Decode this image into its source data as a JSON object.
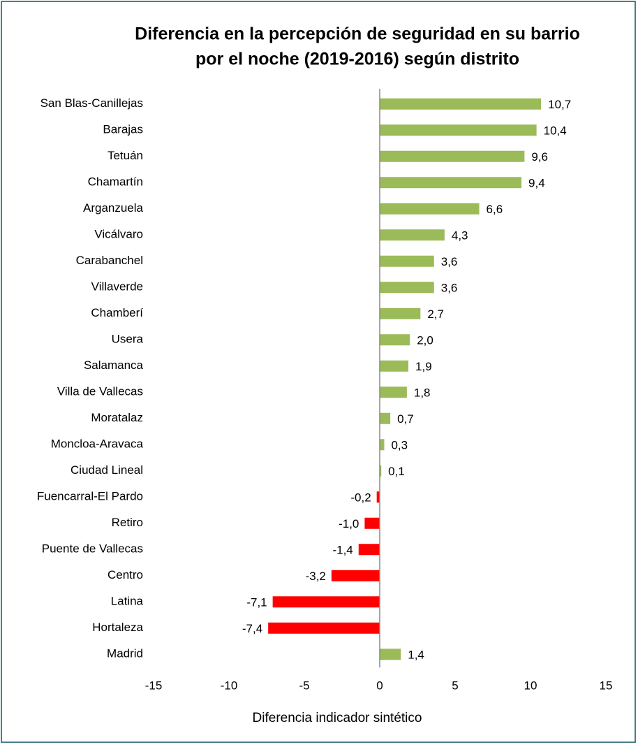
{
  "chart_data": {
    "type": "hbar",
    "title": [
      "Diferencia en la percepción de seguridad en su barrio",
      "por el noche (2019-2016) según distrito"
    ],
    "xlabel": "Diferencia indicador sintético",
    "categories": [
      "San Blas-Canillejas",
      "Barajas",
      "Tetuán",
      "Chamartín",
      "Arganzuela",
      "Vicálvaro",
      "Carabanchel",
      "Villaverde",
      "Chamberí",
      "Usera",
      "Salamanca",
      "Villa de Vallecas",
      "Moratalaz",
      "Moncloa-Aravaca",
      "Ciudad Lineal",
      "Fuencarral-El Pardo",
      "Retiro",
      "Puente de Vallecas",
      "Centro",
      "Latina",
      "Hortaleza",
      "Madrid"
    ],
    "values": [
      10.7,
      10.4,
      9.6,
      9.4,
      6.6,
      4.3,
      3.6,
      3.6,
      2.7,
      2.0,
      1.9,
      1.8,
      0.7,
      0.3,
      0.1,
      -0.2,
      -1.0,
      -1.4,
      -3.2,
      -7.1,
      -7.4,
      1.4
    ],
    "value_labels": [
      "10,7",
      "10,4",
      "9,6",
      "9,4",
      "6,6",
      "4,3",
      "3,6",
      "3,6",
      "2,7",
      "2,0",
      "1,9",
      "1,8",
      "0,7",
      "0,3",
      "0,1",
      "-0,2",
      "-1,0",
      "-1,4",
      "-3,2",
      "-7,1",
      "-7,4",
      "1,4"
    ],
    "colors": [
      "#9bbb59",
      "#9bbb59",
      "#9bbb59",
      "#9bbb59",
      "#9bbb59",
      "#9bbb59",
      "#9bbb59",
      "#9bbb59",
      "#9bbb59",
      "#9bbb59",
      "#9bbb59",
      "#9bbb59",
      "#9bbb59",
      "#9bbb59",
      "#9bbb59",
      "#ff0000",
      "#ff0000",
      "#ff0000",
      "#ff0000",
      "#ff0000",
      "#ff0000",
      "#9bbb59"
    ],
    "xlim": [
      -15,
      15
    ],
    "xticks": [
      -15,
      -10,
      -5,
      0,
      5,
      10,
      15
    ],
    "grid": false
  }
}
